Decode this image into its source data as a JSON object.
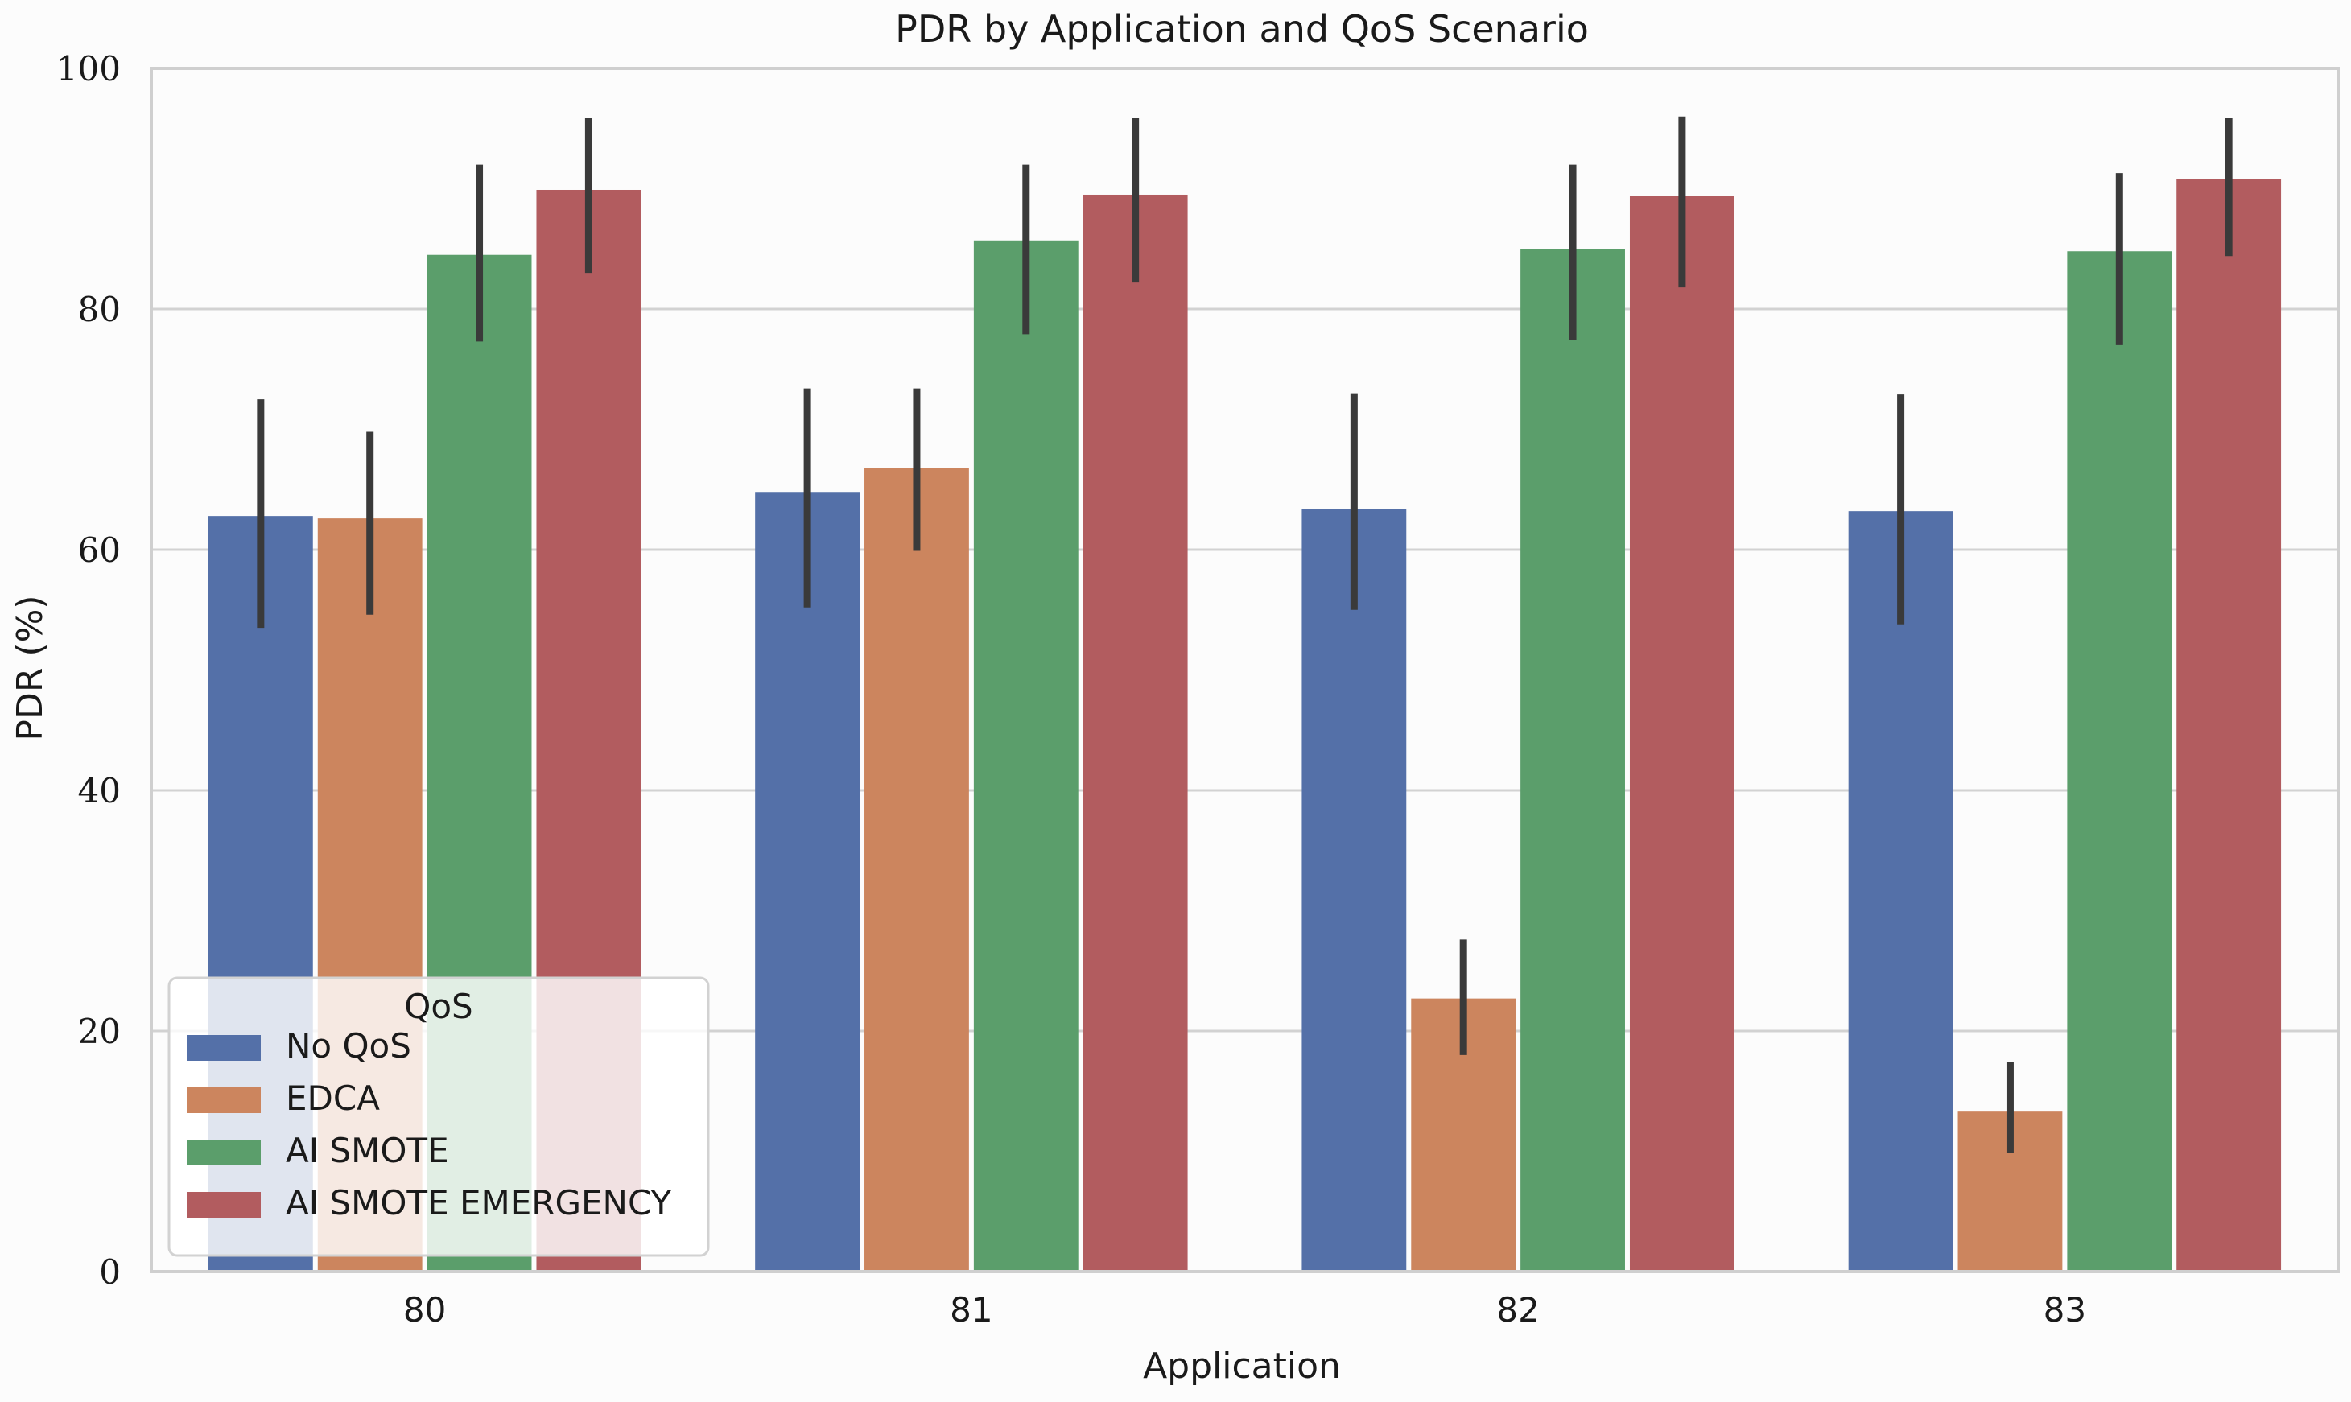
{
  "chart_data": {
    "type": "bar",
    "title": "PDR by Application and QoS Scenario",
    "xlabel": "Application",
    "ylabel": "PDR (%)",
    "categories": [
      "80",
      "81",
      "82",
      "83"
    ],
    "ylim": [
      0,
      100
    ],
    "yticks": [
      0,
      20,
      40,
      60,
      80,
      100
    ],
    "grid": "horizontal",
    "legend": {
      "title": "QoS",
      "placement": "lower-left"
    },
    "series": [
      {
        "name": "No QoS",
        "color": "#5470a8",
        "values": [
          62.8,
          64.8,
          63.4,
          63.2
        ],
        "error_low": [
          53.5,
          55.2,
          55.0,
          53.8
        ],
        "error_high": [
          72.5,
          73.4,
          73.0,
          72.9
        ]
      },
      {
        "name": "EDCA",
        "color": "#cc855e",
        "values": [
          62.6,
          66.8,
          22.7,
          13.3
        ],
        "error_low": [
          54.6,
          59.9,
          18.0,
          9.9
        ],
        "error_high": [
          69.8,
          73.4,
          27.6,
          17.4
        ]
      },
      {
        "name": "AI SMOTE",
        "color": "#5b9e6b",
        "values": [
          84.5,
          85.7,
          85.0,
          84.8
        ],
        "error_low": [
          77.3,
          77.9,
          77.4,
          77.0
        ],
        "error_high": [
          92.0,
          92.0,
          92.0,
          91.3
        ]
      },
      {
        "name": "AI SMOTE EMERGENCY",
        "color": "#b25c5f",
        "values": [
          89.9,
          89.5,
          89.4,
          90.8
        ],
        "error_low": [
          83.0,
          82.2,
          81.8,
          84.4
        ],
        "error_high": [
          95.9,
          95.9,
          96.0,
          95.9
        ]
      }
    ]
  }
}
